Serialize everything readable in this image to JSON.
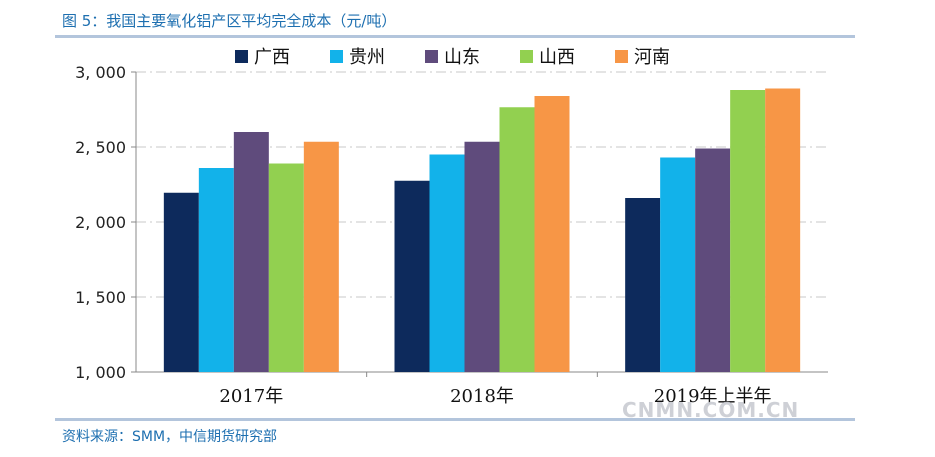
{
  "figure": {
    "title": "图 5：我国主要氧化铝产区平均完全成本（元/吨）",
    "source": "资料来源：SMM，中信期货研究部",
    "watermark": "CNMN.COM.CN"
  },
  "chart_data": {
    "type": "bar",
    "title": "我国主要氧化铝产区平均完全成本（元/吨）",
    "categories": [
      "2017年",
      "2018年",
      "2019年上半年"
    ],
    "series": [
      {
        "name": "广西",
        "color": "#0d2a5c",
        "values": [
          2195,
          2275,
          2160
        ]
      },
      {
        "name": "贵州",
        "color": "#12b2ea",
        "values": [
          2360,
          2450,
          2430
        ]
      },
      {
        "name": "山东",
        "color": "#5f4b7c",
        "values": [
          2600,
          2535,
          2490
        ]
      },
      {
        "name": "山西",
        "color": "#92d050",
        "values": [
          2390,
          2765,
          2880
        ]
      },
      {
        "name": "河南",
        "color": "#f79646",
        "values": [
          2535,
          2840,
          2890
        ]
      }
    ],
    "ylim": [
      1000,
      3000
    ],
    "yticks": [
      1000,
      1500,
      2000,
      2500,
      3000
    ],
    "ytick_labels": [
      "1, 000",
      "1, 500",
      "2, 000",
      "2, 500",
      "3, 000"
    ],
    "xlabel": "",
    "ylabel": "",
    "grid": true,
    "legend_position": "top"
  }
}
